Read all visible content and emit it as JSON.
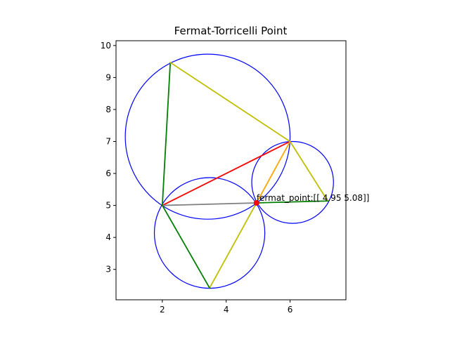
{
  "chart_data": {
    "type": "diagram-plot",
    "title": "Fermat-Torricelli Point",
    "xlabel": "",
    "ylabel": "",
    "xlim": [
      0.55,
      7.75
    ],
    "ylim": [
      2.05,
      10.15
    ],
    "x_ticks": [
      2,
      4,
      6
    ],
    "y_ticks": [
      3,
      4,
      5,
      6,
      7,
      8,
      9,
      10
    ],
    "grid": false,
    "triangle": {
      "A": [
        2.0,
        5.0
      ],
      "B": [
        6.0,
        7.0
      ],
      "C": [
        4.95,
        5.08
      ]
    },
    "outer_points": {
      "P1": [
        2.25,
        9.47
      ],
      "P2": [
        7.18,
        5.14
      ],
      "P3": [
        3.48,
        2.42
      ]
    },
    "circles": [
      {
        "center": [
          3.42,
          7.15
        ],
        "radius": 2.58,
        "color": "#0000ff"
      },
      {
        "center": [
          6.08,
          5.72
        ],
        "radius": 1.28,
        "color": "#0000ff"
      },
      {
        "center": [
          3.48,
          4.14
        ],
        "radius": 1.73,
        "color": "#0000ff"
      }
    ],
    "segments": [
      {
        "from": [
          2.0,
          5.0
        ],
        "to": [
          6.0,
          7.0
        ],
        "color": "#ff0000"
      },
      {
        "from": [
          2.0,
          5.0
        ],
        "to": [
          4.95,
          5.08
        ],
        "color": "#808080"
      },
      {
        "from": [
          6.0,
          7.0
        ],
        "to": [
          4.95,
          5.08
        ],
        "color": "#ffa500"
      },
      {
        "from": [
          2.0,
          5.0
        ],
        "to": [
          2.25,
          9.47
        ],
        "color": "#008000"
      },
      {
        "from": [
          2.25,
          9.47
        ],
        "to": [
          6.0,
          7.0
        ],
        "color": "#bfbf00"
      },
      {
        "from": [
          6.0,
          7.0
        ],
        "to": [
          7.18,
          5.14
        ],
        "color": "#bfbf00"
      },
      {
        "from": [
          7.18,
          5.14
        ],
        "to": [
          4.95,
          5.08
        ],
        "color": "#008000"
      },
      {
        "from": [
          4.95,
          5.08
        ],
        "to": [
          3.48,
          2.42
        ],
        "color": "#bfbf00"
      },
      {
        "from": [
          3.48,
          2.42
        ],
        "to": [
          2.0,
          5.0
        ],
        "color": "#008000"
      }
    ],
    "fermat_point": {
      "x": 4.95,
      "y": 5.08,
      "color": "#ff0000"
    },
    "annotation": "fermat_point:[[ 4.95  5.08]]"
  }
}
